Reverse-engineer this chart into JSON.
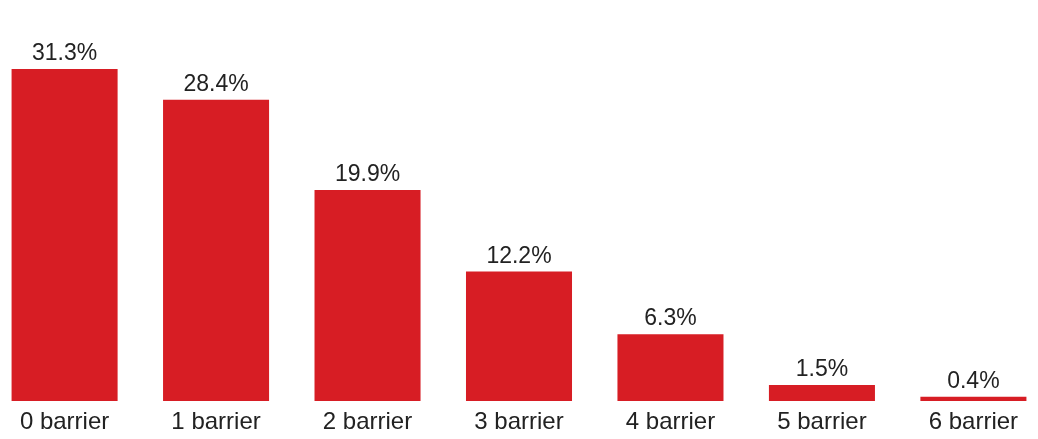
{
  "chart_data": {
    "type": "bar",
    "categories": [
      "0 barrier",
      "1 barrier",
      "2 barrier",
      "3 barrier",
      "4 barrier",
      "5 barrier",
      "6 barrier"
    ],
    "values": [
      31.3,
      28.4,
      19.9,
      12.2,
      6.3,
      1.5,
      0.4
    ],
    "value_labels": [
      "31.3%",
      "28.4%",
      "19.9%",
      "12.2%",
      "6.3%",
      "1.5%",
      "0.4%"
    ],
    "color": "#d71d24"
  }
}
